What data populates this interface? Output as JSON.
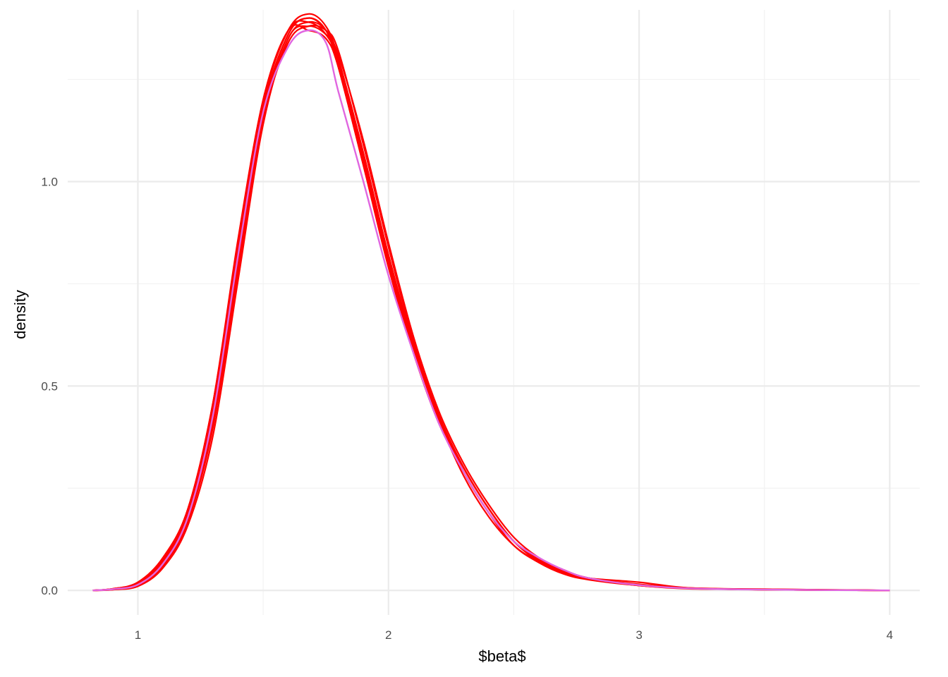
{
  "chart_data": {
    "type": "line",
    "title": "",
    "xlabel": "$beta$",
    "ylabel": "density",
    "xlim": [
      0.72,
      4.12
    ],
    "ylim": [
      -0.06,
      1.42
    ],
    "x_ticks": [
      1,
      2,
      3,
      4
    ],
    "x_tick_labels": [
      "1",
      "2",
      "3",
      "4"
    ],
    "x_minor_ticks": [
      1.5,
      2.5,
      3.5
    ],
    "y_ticks": [
      0.0,
      0.5,
      1.0
    ],
    "y_tick_labels": [
      "0.0",
      "0.5",
      "1.0"
    ],
    "y_minor_ticks": [
      0.25,
      0.75,
      1.25
    ],
    "grid": true,
    "legend": "none",
    "colors": {
      "replicate": "#ff0000",
      "observed": "#e066e0",
      "grid_major": "#ebebeb",
      "grid_minor": "#f2f2f2"
    },
    "x": [
      0.82,
      0.9,
      1.0,
      1.1,
      1.2,
      1.3,
      1.4,
      1.5,
      1.6,
      1.68,
      1.75,
      1.8,
      1.9,
      2.0,
      2.1,
      2.2,
      2.3,
      2.4,
      2.5,
      2.6,
      2.7,
      2.8,
      3.0,
      3.2,
      3.5,
      4.0
    ],
    "series": [
      {
        "role": "replicate",
        "values": [
          0.0,
          0.004,
          0.02,
          0.08,
          0.2,
          0.46,
          0.86,
          1.2,
          1.37,
          1.41,
          1.38,
          1.3,
          1.05,
          0.8,
          0.59,
          0.42,
          0.29,
          0.19,
          0.12,
          0.075,
          0.048,
          0.03,
          0.012,
          0.005,
          0.002,
          0.0
        ]
      },
      {
        "role": "replicate",
        "values": [
          0.0,
          0.003,
          0.015,
          0.065,
          0.18,
          0.42,
          0.8,
          1.16,
          1.35,
          1.39,
          1.37,
          1.3,
          1.06,
          0.82,
          0.6,
          0.42,
          0.28,
          0.18,
          0.11,
          0.07,
          0.045,
          0.028,
          0.013,
          0.006,
          0.002,
          0.0
        ]
      },
      {
        "role": "replicate",
        "values": [
          0.0,
          0.002,
          0.012,
          0.06,
          0.17,
          0.4,
          0.78,
          1.15,
          1.34,
          1.38,
          1.37,
          1.32,
          1.09,
          0.84,
          0.61,
          0.43,
          0.3,
          0.2,
          0.12,
          0.075,
          0.045,
          0.03,
          0.015,
          0.006,
          0.003,
          0.0
        ]
      },
      {
        "role": "replicate",
        "values": [
          0.0,
          0.004,
          0.018,
          0.075,
          0.19,
          0.45,
          0.84,
          1.18,
          1.36,
          1.4,
          1.37,
          1.28,
          1.04,
          0.79,
          0.58,
          0.41,
          0.29,
          0.19,
          0.12,
          0.07,
          0.045,
          0.03,
          0.02,
          0.006,
          0.002,
          0.0
        ]
      },
      {
        "role": "replicate",
        "values": [
          0.0,
          0.002,
          0.01,
          0.055,
          0.16,
          0.38,
          0.76,
          1.14,
          1.35,
          1.38,
          1.36,
          1.31,
          1.1,
          0.85,
          0.62,
          0.44,
          0.31,
          0.21,
          0.13,
          0.08,
          0.05,
          0.03,
          0.013,
          0.005,
          0.002,
          0.0
        ]
      },
      {
        "role": "replicate",
        "values": [
          0.0,
          0.003,
          0.016,
          0.07,
          0.19,
          0.44,
          0.83,
          1.19,
          1.37,
          1.39,
          1.36,
          1.29,
          1.05,
          0.81,
          0.59,
          0.42,
          0.3,
          0.2,
          0.12,
          0.072,
          0.042,
          0.028,
          0.012,
          0.004,
          0.003,
          0.0
        ]
      },
      {
        "role": "replicate",
        "values": [
          0.0,
          0.003,
          0.014,
          0.062,
          0.17,
          0.41,
          0.8,
          1.17,
          1.36,
          1.4,
          1.37,
          1.3,
          1.07,
          0.82,
          0.6,
          0.43,
          0.29,
          0.19,
          0.11,
          0.068,
          0.04,
          0.026,
          0.012,
          0.005,
          0.002,
          0.0
        ]
      },
      {
        "role": "replicate",
        "values": [
          0.0,
          0.004,
          0.019,
          0.078,
          0.2,
          0.46,
          0.85,
          1.2,
          1.37,
          1.37,
          1.35,
          1.28,
          1.04,
          0.8,
          0.6,
          0.43,
          0.3,
          0.2,
          0.12,
          0.072,
          0.045,
          0.03,
          0.014,
          0.005,
          0.002,
          0.0
        ]
      },
      {
        "role": "observed",
        "values": [
          0.0,
          0.003,
          0.014,
          0.065,
          0.18,
          0.43,
          0.82,
          1.17,
          1.33,
          1.37,
          1.34,
          1.22,
          1.0,
          0.77,
          0.58,
          0.41,
          0.29,
          0.19,
          0.12,
          0.08,
          0.05,
          0.03,
          0.013,
          0.005,
          0.002,
          0.0
        ]
      }
    ]
  }
}
